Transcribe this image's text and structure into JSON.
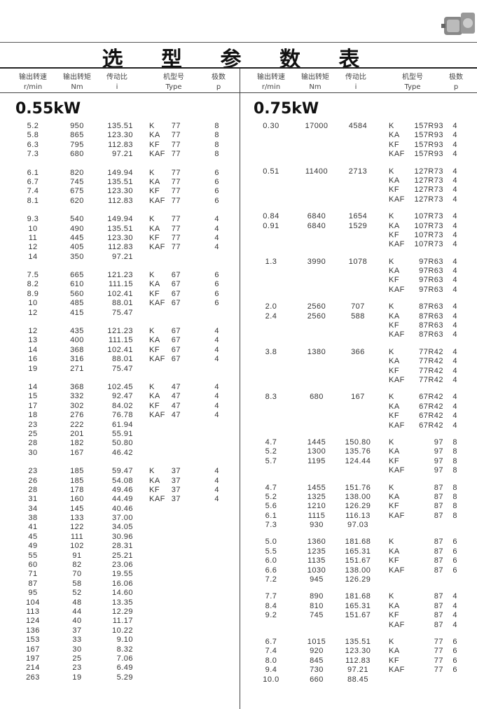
{
  "title": "选 型 参 数 表",
  "headers": [
    {
      "cn": "输出转速",
      "unit": "r/min"
    },
    {
      "cn": "输出转矩",
      "unit": "Nm"
    },
    {
      "cn": "传动比",
      "unit": "i"
    },
    {
      "cn": "机型号",
      "unit": "Type"
    },
    {
      "cn": "极数",
      "unit": "p"
    }
  ],
  "left": {
    "power": "0.55kW",
    "groups": [
      [
        [
          "5.2",
          "950",
          "135.51",
          "K",
          "77",
          "8"
        ],
        [
          "5.8",
          "865",
          "123.30",
          "KA",
          "77",
          "8"
        ],
        [
          "6.3",
          "795",
          "112.83",
          "KF",
          "77",
          "8"
        ],
        [
          "7.3",
          "680",
          "97.21",
          "KAF",
          "77",
          "8"
        ]
      ],
      [
        [
          "6.1",
          "820",
          "149.94",
          "K",
          "77",
          "6"
        ],
        [
          "6.7",
          "745",
          "135.51",
          "KA",
          "77",
          "6"
        ],
        [
          "7.4",
          "675",
          "123.30",
          "KF",
          "77",
          "6"
        ],
        [
          "8.1",
          "620",
          "112.83",
          "KAF",
          "77",
          "6"
        ]
      ],
      [
        [
          "9.3",
          "540",
          "149.94",
          "K",
          "77",
          "4"
        ],
        [
          "10",
          "490",
          "135.51",
          "KA",
          "77",
          "4"
        ],
        [
          "11",
          "445",
          "123.30",
          "KF",
          "77",
          "4"
        ],
        [
          "12",
          "405",
          "112.83",
          "KAF",
          "77",
          "4"
        ],
        [
          "14",
          "350",
          "97.21",
          "",
          "",
          ""
        ]
      ],
      [
        [
          "7.5",
          "665",
          "121.23",
          "K",
          "67",
          "6"
        ],
        [
          "8.2",
          "610",
          "111.15",
          "KA",
          "67",
          "6"
        ],
        [
          "8.9",
          "560",
          "102.41",
          "KF",
          "67",
          "6"
        ],
        [
          "10",
          "485",
          "88.01",
          "KAF",
          "67",
          "6"
        ],
        [
          "12",
          "415",
          "75.47",
          "",
          "",
          ""
        ]
      ],
      [
        [
          "12",
          "435",
          "121.23",
          "K",
          "67",
          "4"
        ],
        [
          "13",
          "400",
          "111.15",
          "KA",
          "67",
          "4"
        ],
        [
          "14",
          "368",
          "102.41",
          "KF",
          "67",
          "4"
        ],
        [
          "16",
          "316",
          "88.01",
          "KAF",
          "67",
          "4"
        ],
        [
          "19",
          "271",
          "75.47",
          "",
          "",
          ""
        ]
      ],
      [
        [
          "14",
          "368",
          "102.45",
          "K",
          "47",
          "4"
        ],
        [
          "15",
          "332",
          "92.47",
          "KA",
          "47",
          "4"
        ],
        [
          "17",
          "302",
          "84.02",
          "KF",
          "47",
          "4"
        ],
        [
          "18",
          "276",
          "76.78",
          "KAF",
          "47",
          "4"
        ],
        [
          "23",
          "222",
          "61.94",
          "",
          "",
          ""
        ],
        [
          "25",
          "201",
          "55.91",
          "",
          "",
          ""
        ],
        [
          "28",
          "182",
          "50.80",
          "",
          "",
          ""
        ],
        [
          "30",
          "167",
          "46.42",
          "",
          "",
          ""
        ]
      ],
      [
        [
          "23",
          "185",
          "59.47",
          "K",
          "37",
          "4"
        ],
        [
          "26",
          "185",
          "54.08",
          "KA",
          "37",
          "4"
        ],
        [
          "28",
          "178",
          "49.46",
          "KF",
          "37",
          "4"
        ],
        [
          "31",
          "160",
          "44.49",
          "KAF",
          "37",
          "4"
        ],
        [
          "34",
          "145",
          "40.46",
          "",
          "",
          ""
        ],
        [
          "38",
          "133",
          "37.00",
          "",
          "",
          ""
        ],
        [
          "41",
          "122",
          "34.05",
          "",
          "",
          ""
        ],
        [
          "45",
          "111",
          "30.96",
          "",
          "",
          ""
        ],
        [
          "49",
          "102",
          "28.31",
          "",
          "",
          ""
        ],
        [
          "55",
          "91",
          "25.21",
          "",
          "",
          ""
        ],
        [
          "60",
          "82",
          "23.06",
          "",
          "",
          ""
        ],
        [
          "71",
          "70",
          "19.55",
          "",
          "",
          ""
        ],
        [
          "87",
          "58",
          "16.06",
          "",
          "",
          ""
        ],
        [
          "95",
          "52",
          "14.60",
          "",
          "",
          ""
        ],
        [
          "104",
          "48",
          "13.35",
          "",
          "",
          ""
        ],
        [
          "113",
          "44",
          "12.29",
          "",
          "",
          ""
        ],
        [
          "124",
          "40",
          "11.17",
          "",
          "",
          ""
        ],
        [
          "136",
          "37",
          "10.22",
          "",
          "",
          ""
        ],
        [
          "153",
          "33",
          "9.10",
          "",
          "",
          ""
        ],
        [
          "167",
          "30",
          "8.32",
          "",
          "",
          ""
        ],
        [
          "197",
          "25",
          "7.06",
          "",
          "",
          ""
        ],
        [
          "214",
          "23",
          "6.49",
          "",
          "",
          ""
        ],
        [
          "263",
          "19",
          "5.29",
          "",
          "",
          ""
        ]
      ]
    ]
  },
  "right": {
    "power": "0.75kW",
    "groups": [
      [
        [
          "0.30",
          "17000",
          "4584",
          "K",
          "157R93",
          "4"
        ],
        [
          "",
          "",
          "",
          "KA",
          "157R93",
          "4"
        ],
        [
          "",
          "",
          "",
          "KF",
          "157R93",
          "4"
        ],
        [
          "",
          "",
          "",
          "KAF",
          "157R93",
          "4"
        ]
      ],
      [
        [
          "0.51",
          "11400",
          "2713",
          "K",
          "127R73",
          "4"
        ],
        [
          "",
          "",
          "",
          "KA",
          "127R73",
          "4"
        ],
        [
          "",
          "",
          "",
          "KF",
          "127R73",
          "4"
        ],
        [
          "",
          "",
          "",
          "KAF",
          "127R73",
          "4"
        ]
      ],
      [
        [
          "0.84",
          "6840",
          "1654",
          "K",
          "107R73",
          "4"
        ],
        [
          "0.91",
          "6840",
          "1529",
          "KA",
          "107R73",
          "4"
        ],
        [
          "",
          "",
          "",
          "KF",
          "107R73",
          "4"
        ],
        [
          "",
          "",
          "",
          "KAF",
          "107R73",
          "4"
        ]
      ],
      [
        [
          "1.3",
          "3990",
          "1078",
          "K",
          "97R63",
          "4"
        ],
        [
          "",
          "",
          "",
          "KA",
          "97R63",
          "4"
        ],
        [
          "",
          "",
          "",
          "KF",
          "97R63",
          "4"
        ],
        [
          "",
          "",
          "",
          "KAF",
          "97R63",
          "4"
        ]
      ],
      [
        [
          "2.0",
          "2560",
          "707",
          "K",
          "87R63",
          "4"
        ],
        [
          "2.4",
          "2560",
          "588",
          "KA",
          "87R63",
          "4"
        ],
        [
          "",
          "",
          "",
          "KF",
          "87R63",
          "4"
        ],
        [
          "",
          "",
          "",
          "KAF",
          "87R63",
          "4"
        ]
      ],
      [
        [
          "3.8",
          "1380",
          "366",
          "K",
          "77R42",
          "4"
        ],
        [
          "",
          "",
          "",
          "KA",
          "77R42",
          "4"
        ],
        [
          "",
          "",
          "",
          "KF",
          "77R42",
          "4"
        ],
        [
          "",
          "",
          "",
          "KAF",
          "77R42",
          "4"
        ]
      ],
      [
        [
          "8.3",
          "680",
          "167",
          "K",
          "67R42",
          "4"
        ],
        [
          "",
          "",
          "",
          "KA",
          "67R42",
          "4"
        ],
        [
          "",
          "",
          "",
          "KF",
          "67R42",
          "4"
        ],
        [
          "",
          "",
          "",
          "KAF",
          "67R42",
          "4"
        ]
      ],
      [
        [
          "4.7",
          "1445",
          "150.80",
          "K",
          "97",
          "8"
        ],
        [
          "5.2",
          "1300",
          "135.76",
          "KA",
          "97",
          "8"
        ],
        [
          "5.7",
          "1195",
          "124.44",
          "KF",
          "97",
          "8"
        ],
        [
          "",
          "",
          "",
          "KAF",
          "97",
          "8"
        ]
      ],
      [
        [
          "4.7",
          "1455",
          "151.76",
          "K",
          "87",
          "8"
        ],
        [
          "5.2",
          "1325",
          "138.00",
          "KA",
          "87",
          "8"
        ],
        [
          "5.6",
          "1210",
          "126.29",
          "KF",
          "87",
          "8"
        ],
        [
          "6.1",
          "1115",
          "116.13",
          "KAF",
          "87",
          "8"
        ],
        [
          "7.3",
          "930",
          "97.03",
          "",
          "",
          ""
        ]
      ],
      [
        [
          "5.0",
          "1360",
          "181.68",
          "K",
          "87",
          "6"
        ],
        [
          "5.5",
          "1235",
          "165.31",
          "KA",
          "87",
          "6"
        ],
        [
          "6.0",
          "1135",
          "151.67",
          "KF",
          "87",
          "6"
        ],
        [
          "6.6",
          "1030",
          "138.00",
          "KAF",
          "87",
          "6"
        ],
        [
          "7.2",
          "945",
          "126.29",
          "",
          "",
          ""
        ]
      ],
      [
        [
          "7.7",
          "890",
          "181.68",
          "K",
          "87",
          "4"
        ],
        [
          "8.4",
          "810",
          "165.31",
          "KA",
          "87",
          "4"
        ],
        [
          "9.2",
          "745",
          "151.67",
          "KF",
          "87",
          "4"
        ],
        [
          "",
          "",
          "",
          "KAF",
          "87",
          "4"
        ]
      ],
      [
        [
          "6.7",
          "1015",
          "135.51",
          "K",
          "77",
          "6"
        ],
        [
          "7.4",
          "920",
          "123.30",
          "KA",
          "77",
          "6"
        ],
        [
          "8.0",
          "845",
          "112.83",
          "KF",
          "77",
          "6"
        ],
        [
          "9.4",
          "730",
          "97.21",
          "KAF",
          "77",
          "6"
        ],
        [
          "10.0",
          "660",
          "88.45",
          "",
          "",
          ""
        ]
      ]
    ]
  }
}
